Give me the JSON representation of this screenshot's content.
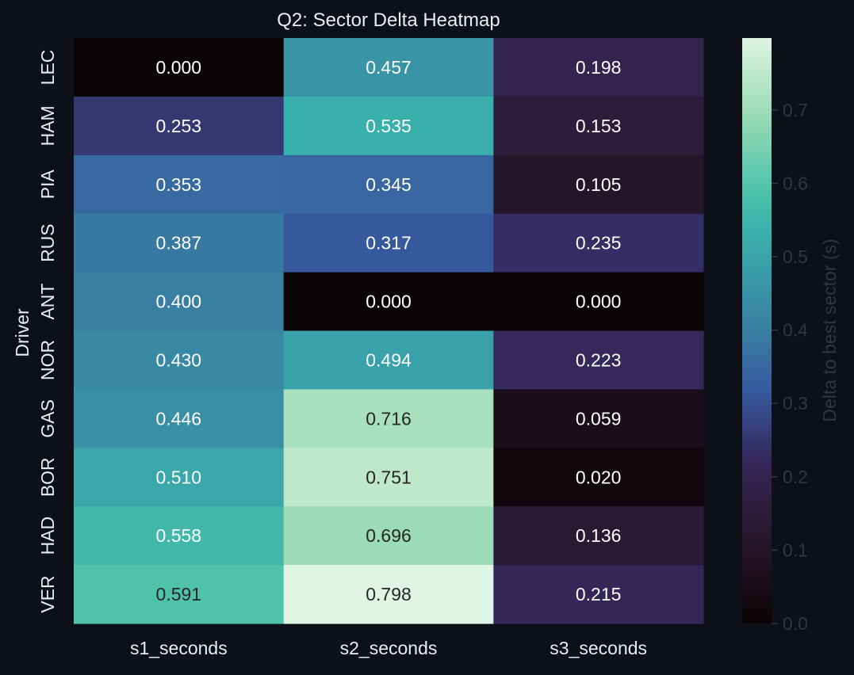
{
  "chart_data": {
    "type": "heatmap",
    "title": "Q2: Sector Delta Heatmap",
    "xlabel": "",
    "ylabel": "Driver",
    "columns": [
      "s1_seconds",
      "s2_seconds",
      "s3_seconds"
    ],
    "rows": [
      "LEC",
      "HAM",
      "PIA",
      "RUS",
      "ANT",
      "NOR",
      "GAS",
      "BOR",
      "HAD",
      "VER"
    ],
    "values": [
      [
        0.0,
        0.457,
        0.198
      ],
      [
        0.253,
        0.535,
        0.153
      ],
      [
        0.353,
        0.345,
        0.105
      ],
      [
        0.387,
        0.317,
        0.235
      ],
      [
        0.4,
        0.0,
        0.0
      ],
      [
        0.43,
        0.494,
        0.223
      ],
      [
        0.446,
        0.716,
        0.059
      ],
      [
        0.51,
        0.751,
        0.02
      ],
      [
        0.558,
        0.696,
        0.136
      ],
      [
        0.591,
        0.798,
        0.215
      ]
    ],
    "value_format": "0.000",
    "colorbar": {
      "label": "Delta to best sector (s)",
      "range": [
        0,
        0.798
      ],
      "ticks": [
        "0.0",
        "0.1",
        "0.2",
        "0.3",
        "0.4",
        "0.5",
        "0.6",
        "0.7"
      ],
      "colormap": "mako"
    },
    "colors": {
      "background": "#0d1117",
      "text_light": "#e6edf3",
      "text_dark": "#262626",
      "colorbar_text": "#30363d"
    }
  }
}
